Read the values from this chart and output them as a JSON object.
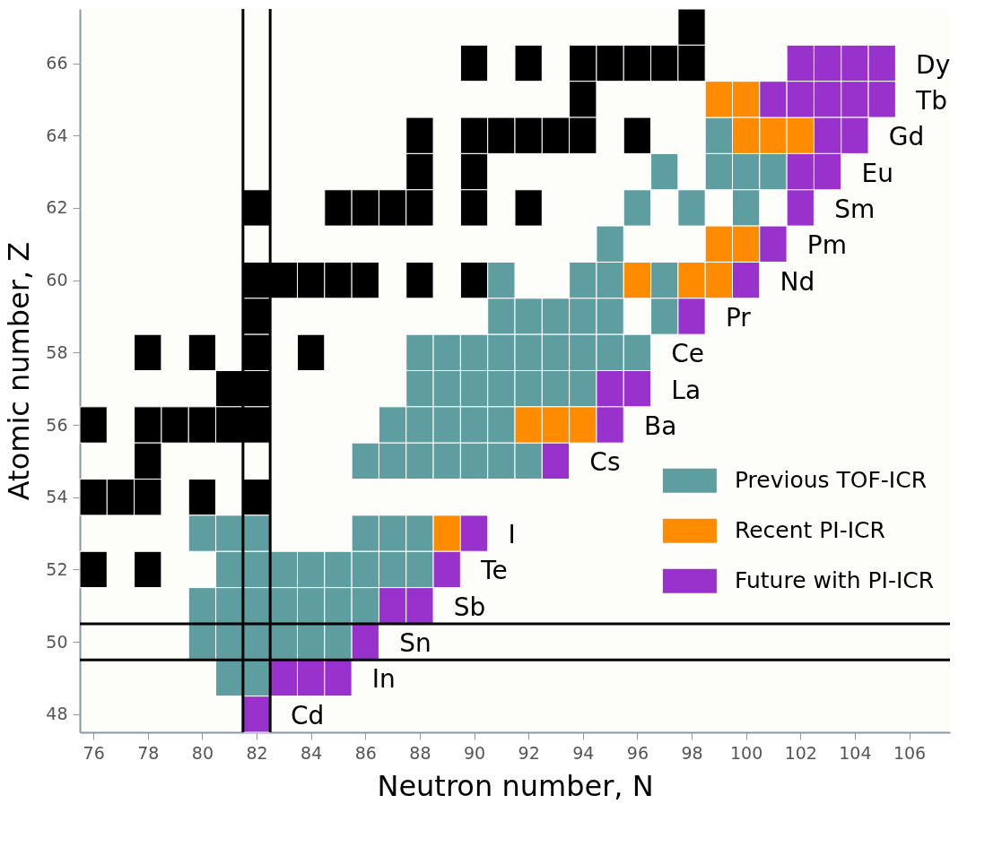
{
  "chart_data": {
    "type": "scatter",
    "xlabel": "Neutron number, N",
    "ylabel": "Atomic number, Z",
    "xlim": [
      75.5,
      107.5
    ],
    "ylim": [
      47.5,
      67.5
    ],
    "xticks": [
      76,
      78,
      80,
      82,
      84,
      86,
      88,
      90,
      92,
      94,
      96,
      98,
      100,
      102,
      104,
      106
    ],
    "yticks": [
      48,
      50,
      52,
      54,
      56,
      58,
      60,
      62,
      64,
      66
    ],
    "marker": "square",
    "grid": false,
    "legend": "bottom right",
    "series": [
      {
        "color": "#000000",
        "x": [
          98,
          90,
          92,
          94,
          95,
          96,
          97,
          98,
          94,
          88,
          90,
          91,
          92,
          93,
          94,
          96,
          88,
          90,
          82,
          85,
          86,
          87,
          88,
          90,
          92,
          82,
          83,
          84,
          85,
          86,
          88,
          90,
          82,
          78,
          80,
          82,
          84,
          81,
          82,
          76,
          78,
          79,
          80,
          81,
          82,
          78,
          76,
          77,
          78,
          80,
          82,
          76,
          78
        ],
        "values": [
          67,
          66,
          66,
          66,
          66,
          66,
          66,
          66,
          65,
          64,
          64,
          64,
          64,
          64,
          64,
          64,
          63,
          63,
          62,
          62,
          62,
          62,
          62,
          62,
          62,
          60,
          60,
          60,
          60,
          60,
          60,
          60,
          59,
          58,
          58,
          58,
          58,
          57,
          57,
          56,
          56,
          56,
          56,
          56,
          56,
          55,
          54,
          54,
          54,
          54,
          54,
          52,
          52
        ]
      },
      {
        "name": "Previous TOF-ICR",
        "color": "#5f9ea0",
        "x": [
          99,
          97,
          99,
          100,
          101,
          96,
          98,
          100,
          95,
          91,
          94,
          95,
          97,
          91,
          92,
          93,
          94,
          95,
          97,
          88,
          89,
          90,
          91,
          92,
          93,
          94,
          95,
          96,
          88,
          89,
          90,
          91,
          92,
          93,
          94,
          87,
          88,
          89,
          90,
          91,
          86,
          87,
          88,
          89,
          90,
          91,
          92,
          80,
          81,
          82,
          86,
          87,
          88,
          81,
          82,
          83,
          84,
          85,
          86,
          87,
          88,
          80,
          81,
          82,
          83,
          84,
          85,
          86,
          80,
          81,
          82,
          83,
          84,
          85,
          81,
          82
        ],
        "values": [
          64,
          63,
          63,
          63,
          63,
          62,
          62,
          62,
          61,
          60,
          60,
          60,
          60,
          59,
          59,
          59,
          59,
          59,
          59,
          58,
          58,
          58,
          58,
          58,
          58,
          58,
          58,
          58,
          57,
          57,
          57,
          57,
          57,
          57,
          57,
          56,
          56,
          56,
          56,
          56,
          55,
          55,
          55,
          55,
          55,
          55,
          55,
          53,
          53,
          53,
          53,
          53,
          53,
          52,
          52,
          52,
          52,
          52,
          52,
          52,
          52,
          51,
          51,
          51,
          51,
          51,
          51,
          51,
          50,
          50,
          50,
          50,
          50,
          50,
          49,
          49
        ]
      },
      {
        "name": "Recent PI-ICR",
        "color": "#ff8c00",
        "x": [
          99,
          100,
          100,
          101,
          102,
          99,
          100,
          96,
          98,
          99,
          92,
          93,
          94,
          89
        ],
        "values": [
          65,
          65,
          64,
          64,
          64,
          61,
          61,
          60,
          60,
          60,
          56,
          56,
          56,
          53
        ]
      },
      {
        "name": "Future with PI-ICR",
        "color": "#9932cc",
        "x": [
          102,
          103,
          104,
          105,
          101,
          102,
          103,
          104,
          105,
          103,
          104,
          102,
          103,
          102,
          101,
          100,
          98,
          95,
          96,
          95,
          93,
          90,
          89,
          87,
          88,
          86,
          83,
          84,
          85,
          82
        ],
        "values": [
          66,
          66,
          66,
          66,
          65,
          65,
          65,
          65,
          65,
          64,
          64,
          63,
          63,
          62,
          61,
          60,
          59,
          57,
          57,
          56,
          55,
          53,
          52,
          51,
          51,
          50,
          49,
          49,
          49,
          48
        ]
      }
    ],
    "ref_lines": [
      {
        "axis": "x",
        "value": 81.5,
        "color": "#000000"
      },
      {
        "axis": "x",
        "value": 82.5,
        "color": "#000000"
      },
      {
        "axis": "y",
        "value": 49.5,
        "color": "#000000"
      },
      {
        "axis": "y",
        "value": 50.5,
        "color": "#000000"
      }
    ],
    "annotations": [
      {
        "text": "Dy",
        "x": 105,
        "y": 66
      },
      {
        "text": "Tb",
        "x": 105,
        "y": 65
      },
      {
        "text": "Gd",
        "x": 104,
        "y": 64
      },
      {
        "text": "Eu",
        "x": 103,
        "y": 63
      },
      {
        "text": "Sm",
        "x": 102,
        "y": 62
      },
      {
        "text": "Pm",
        "x": 101,
        "y": 61
      },
      {
        "text": "Nd",
        "x": 100,
        "y": 60
      },
      {
        "text": "Pr",
        "x": 98,
        "y": 59
      },
      {
        "text": "Ce",
        "x": 96,
        "y": 58
      },
      {
        "text": "La",
        "x": 96,
        "y": 57
      },
      {
        "text": "Ba",
        "x": 95,
        "y": 56
      },
      {
        "text": "Cs",
        "x": 93,
        "y": 55
      },
      {
        "text": "I",
        "x": 90,
        "y": 53
      },
      {
        "text": "Te",
        "x": 89,
        "y": 52
      },
      {
        "text": "Sb",
        "x": 88,
        "y": 51
      },
      {
        "text": "Sn",
        "x": 86,
        "y": 50
      },
      {
        "text": "In",
        "x": 85,
        "y": 49
      },
      {
        "text": "Cd",
        "x": 82,
        "y": 48
      }
    ]
  }
}
